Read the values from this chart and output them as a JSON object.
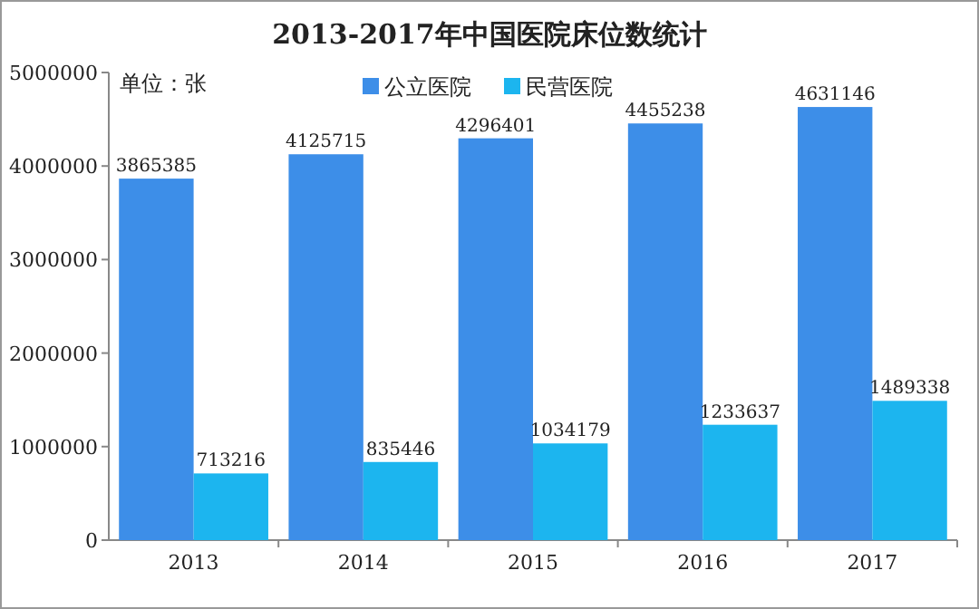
{
  "chart_data": {
    "type": "bar",
    "title": "2013-2017年中国医院床位数统计",
    "annotations": [
      "单位：张"
    ],
    "categories": [
      "2013",
      "2014",
      "2015",
      "2016",
      "2017"
    ],
    "series": [
      {
        "name": "公立医院",
        "color": "#3d8ee8",
        "values": [
          3865385,
          4125715,
          4296401,
          4455238,
          4631146
        ]
      },
      {
        "name": "民营医院",
        "color": "#1cb5ef",
        "values": [
          713216,
          835446,
          1034179,
          1233637,
          1489338
        ]
      }
    ],
    "ylim": [
      0,
      5000000
    ],
    "yticks": [
      0,
      1000000,
      2000000,
      3000000,
      4000000,
      5000000
    ],
    "data_labels": true,
    "legend": "top"
  }
}
